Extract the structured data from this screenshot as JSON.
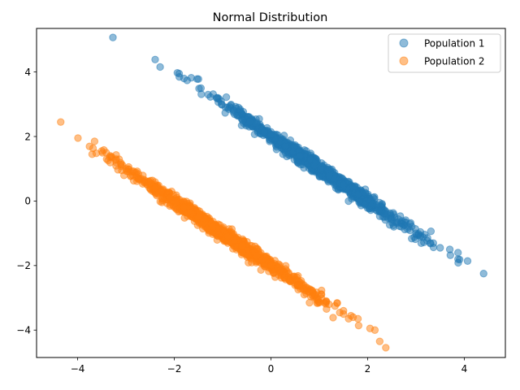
{
  "chart_data": {
    "type": "scatter",
    "title": "Normal Distribution",
    "xlabel": "",
    "ylabel": "",
    "xlim": [
      -4.85,
      4.85
    ],
    "ylim": [
      -4.85,
      5.35
    ],
    "xticks": [
      -4,
      -2,
      0,
      2,
      4
    ],
    "yticks": [
      -4,
      -2,
      0,
      2,
      4
    ],
    "grid": false,
    "legend_position": "top-right",
    "series": [
      {
        "name": "Population 1",
        "color": "#1f77b4",
        "point_count": 1000,
        "distribution": "line y = 2 - x with small perpendicular noise; x ~ Normal(1, 1)",
        "sample_points": [
          [
            -3.27,
            5.07
          ],
          [
            -1.9,
            3.95
          ],
          [
            -1.8,
            3.8
          ],
          [
            -1.65,
            3.82
          ],
          [
            -1.5,
            3.78
          ],
          [
            -1.3,
            3.3
          ],
          [
            -1.1,
            3.2
          ],
          [
            -0.9,
            2.9
          ],
          [
            -0.6,
            2.7
          ],
          [
            -0.3,
            2.4
          ],
          [
            0.0,
            2.05
          ],
          [
            0.3,
            1.7
          ],
          [
            0.6,
            1.4
          ],
          [
            0.9,
            1.1
          ],
          [
            1.2,
            0.8
          ],
          [
            1.5,
            0.5
          ],
          [
            1.8,
            0.2
          ],
          [
            2.1,
            -0.1
          ],
          [
            2.4,
            -0.4
          ],
          [
            2.7,
            -0.8
          ],
          [
            3.0,
            -1.0
          ],
          [
            3.3,
            -1.3
          ],
          [
            3.5,
            -1.45
          ],
          [
            3.7,
            -1.5
          ],
          [
            3.87,
            -1.6
          ],
          [
            3.87,
            -1.8
          ],
          [
            4.4,
            -2.25
          ]
        ]
      },
      {
        "name": "Population 2",
        "color": "#ff7f0e",
        "point_count": 1000,
        "distribution": "line y = -2 - x with small perpendicular noise; x ~ Normal(-1, 1)",
        "sample_points": [
          [
            -4.35,
            2.45
          ],
          [
            -3.65,
            1.85
          ],
          [
            -3.7,
            1.45
          ],
          [
            -3.5,
            1.55
          ],
          [
            -3.4,
            1.3
          ],
          [
            -3.2,
            1.3
          ],
          [
            -3.0,
            1.0
          ],
          [
            -2.7,
            0.7
          ],
          [
            -2.4,
            0.4
          ],
          [
            -2.1,
            0.1
          ],
          [
            -1.8,
            -0.2
          ],
          [
            -1.5,
            -0.5
          ],
          [
            -1.2,
            -0.8
          ],
          [
            -0.9,
            -1.1
          ],
          [
            -0.6,
            -1.4
          ],
          [
            -0.3,
            -1.7
          ],
          [
            0.0,
            -2.0
          ],
          [
            0.3,
            -2.3
          ],
          [
            0.6,
            -2.6
          ],
          [
            0.9,
            -2.9
          ],
          [
            1.2,
            -3.2
          ],
          [
            1.5,
            -3.4
          ],
          [
            1.7,
            -3.6
          ],
          [
            1.8,
            -3.65
          ],
          [
            2.05,
            -3.95
          ],
          [
            2.15,
            -4.0
          ],
          [
            2.25,
            -4.35
          ]
        ]
      }
    ]
  }
}
